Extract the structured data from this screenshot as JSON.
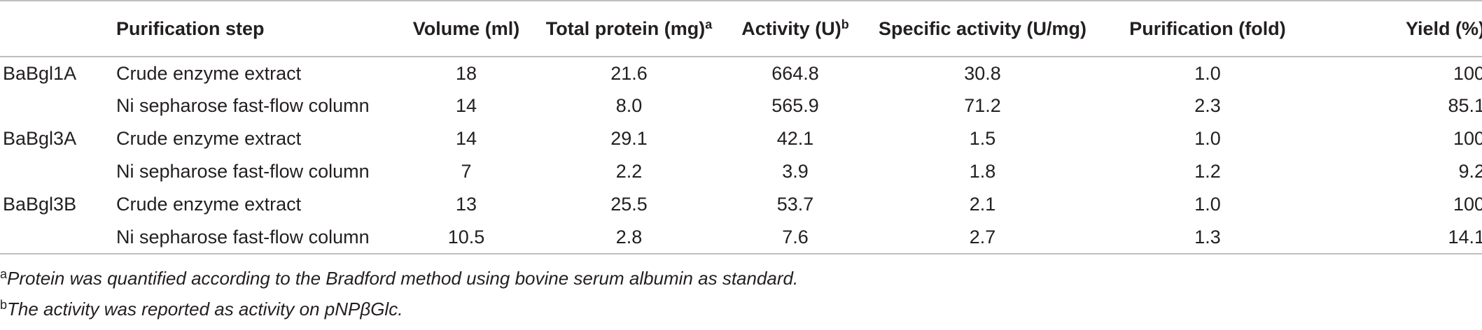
{
  "table": {
    "headers": {
      "enzyme": "",
      "step": "Purification step",
      "volume": "Volume (ml)",
      "total_protein": "Total protein (mg)",
      "total_protein_sup": "a",
      "activity": "Activity (U)",
      "activity_sup": "b",
      "specific_activity": "Specific activity (U/mg)",
      "purification": "Purification (fold)",
      "yield": "Yield (%)"
    },
    "rows": [
      {
        "enzyme": "BaBgl1A",
        "step": "Crude enzyme extract",
        "volume": "18",
        "total_protein": "21.6",
        "activity": "664.8",
        "specific_activity": "30.8",
        "purification": "1.0",
        "yield": "100"
      },
      {
        "enzyme": "",
        "step": "Ni sepharose fast-flow column",
        "volume": "14",
        "total_protein": "8.0",
        "activity": "565.9",
        "specific_activity": "71.2",
        "purification": "2.3",
        "yield": "85.1"
      },
      {
        "enzyme": "BaBgl3A",
        "step": "Crude enzyme extract",
        "volume": "14",
        "total_protein": "29.1",
        "activity": "42.1",
        "specific_activity": "1.5",
        "purification": "1.0",
        "yield": "100"
      },
      {
        "enzyme": "",
        "step": "Ni sepharose fast-flow column",
        "volume": "7",
        "total_protein": "2.2",
        "activity": "3.9",
        "specific_activity": "1.8",
        "purification": "1.2",
        "yield": "9.2"
      },
      {
        "enzyme": "BaBgl3B",
        "step": "Crude enzyme extract",
        "volume": "13",
        "total_protein": "25.5",
        "activity": "53.7",
        "specific_activity": "2.1",
        "purification": "1.0",
        "yield": "100"
      },
      {
        "enzyme": "",
        "step": "Ni sepharose fast-flow column",
        "volume": "10.5",
        "total_protein": "2.8",
        "activity": "7.6",
        "specific_activity": "2.7",
        "purification": "1.3",
        "yield": "14.1"
      }
    ]
  },
  "footnotes": [
    {
      "marker": "a",
      "text": "Protein was quantified according to the Bradford method using bovine serum albumin as standard."
    },
    {
      "marker": "b",
      "text": "The activity was reported as activity on pNPβGlc."
    }
  ]
}
